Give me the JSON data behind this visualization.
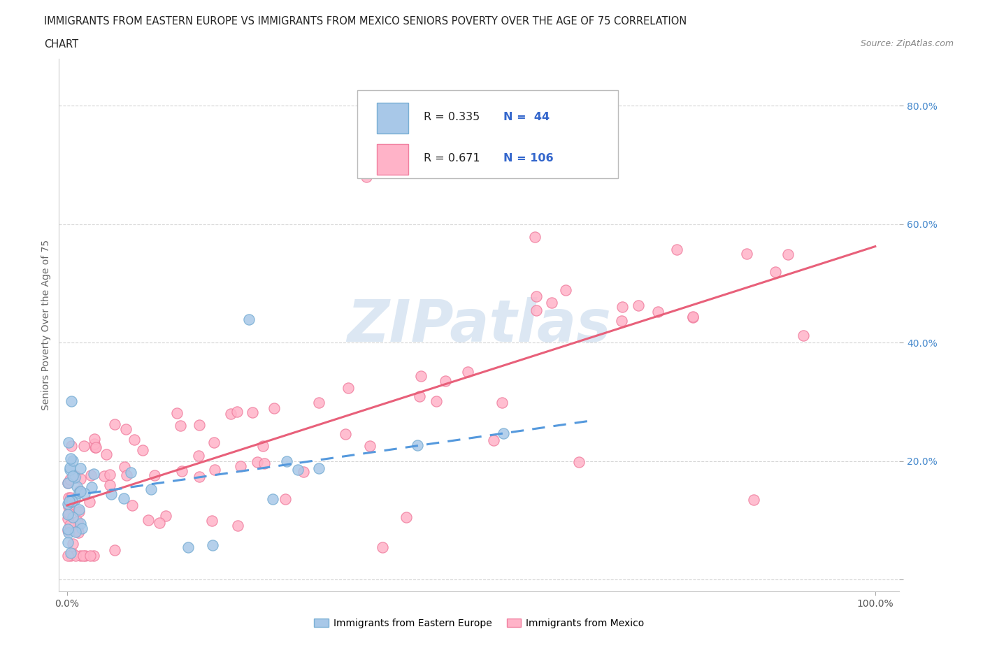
{
  "title_line1": "IMMIGRANTS FROM EASTERN EUROPE VS IMMIGRANTS FROM MEXICO SENIORS POVERTY OVER THE AGE OF 75 CORRELATION",
  "title_line2": "CHART",
  "source": "Source: ZipAtlas.com",
  "ylabel": "Seniors Poverty Over the Age of 75",
  "xlim": [
    -0.01,
    1.03
  ],
  "ylim": [
    -0.02,
    0.88
  ],
  "xtick_positions": [
    0.0,
    1.0
  ],
  "xticklabels": [
    "0.0%",
    "100.0%"
  ],
  "ytick_positions": [
    0.0,
    0.2,
    0.4,
    0.6,
    0.8
  ],
  "yticklabels": [
    "",
    "20.0%",
    "40.0%",
    "60.0%",
    "80.0%"
  ],
  "watermark": "ZIPatlas",
  "watermark_color": "#c0d5ea",
  "ee_color_face": "#a8c8e8",
  "ee_color_edge": "#7aafd4",
  "mx_color_face": "#ffb3c8",
  "mx_color_edge": "#f080a0",
  "line_blue": "#5599dd",
  "line_pink": "#e8607a",
  "legend_r1": "R = 0.335",
  "legend_n1": "N =  44",
  "legend_r2": "R = 0.671",
  "legend_n2": "N = 106",
  "seed_ee": 77,
  "seed_mx": 99
}
